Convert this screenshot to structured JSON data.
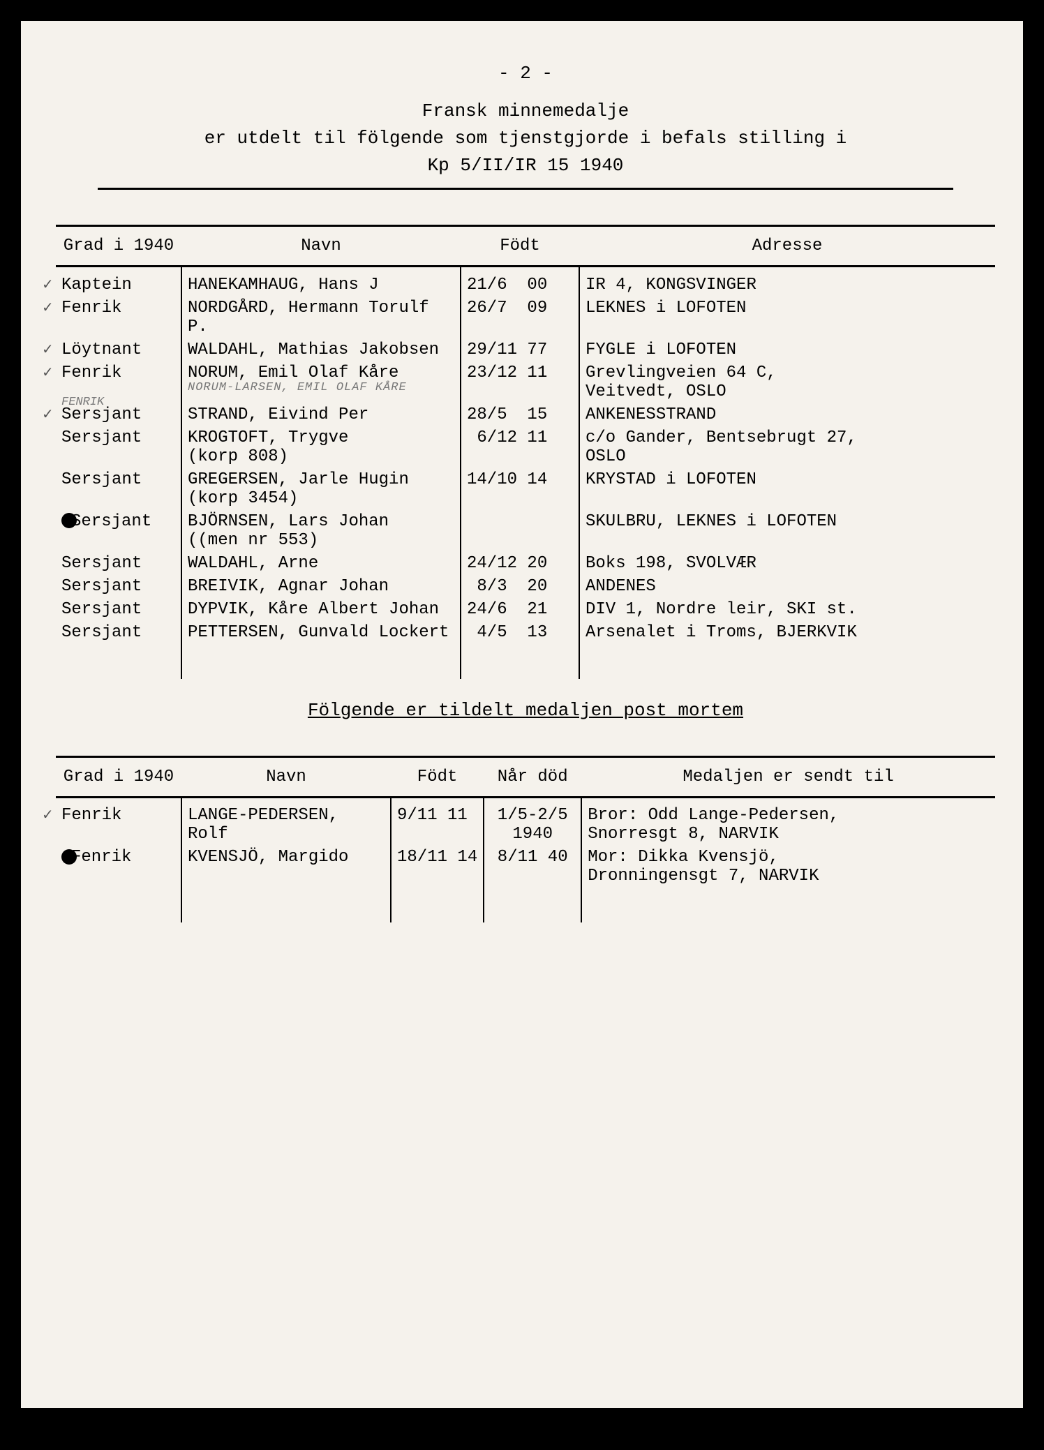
{
  "page_number": "- 2 -",
  "header": {
    "line1": "Fransk minnemedalje",
    "line2": "er utdelt til fölgende som tjenstgjorde i befals stilling i",
    "line3": "Kp 5/II/IR 15 1940"
  },
  "table1": {
    "columns": [
      "Grad i 1940",
      "Navn",
      "Födt",
      "Adresse"
    ],
    "rows": [
      {
        "check": "✓",
        "grad": "Kaptein",
        "navn": "HANEKAMHAUG, Hans J",
        "fodt": "21/6  00",
        "addr": "IR 4, KONGSVINGER"
      },
      {
        "check": "✓",
        "grad": "Fenrik",
        "navn": "NORDGÅRD, Hermann Torulf P.",
        "fodt": "26/7  09",
        "addr": "LEKNES i LOFOTEN"
      },
      {
        "check": "✓",
        "grad": "Löytnant",
        "navn": "WALDAHL, Mathias Jakobsen",
        "fodt": "29/11 77",
        "addr": "FYGLE i LOFOTEN"
      },
      {
        "check": "✓",
        "grad": "Fenrik",
        "navn": "NORUM, Emil Olaf Kåre",
        "annotation": "NORUM-LARSEN, EMIL OLAF KÅRE",
        "fodt": "23/12 11",
        "addr": "Grevlingveien 64 C,\nVeitvedt, OSLO"
      },
      {
        "check": "✓",
        "grad": "Sersjant",
        "grad_annotation": "FENRIK",
        "navn": "STRAND, Eivind Per",
        "fodt": "28/5  15",
        "addr": "ANKENESSTRAND"
      },
      {
        "check": "",
        "grad": "Sersjant",
        "navn": "KROGTOFT, Trygve\n(korp 808)",
        "fodt": " 6/12 11",
        "addr": "c/o Gander, Bentsebrugt 27,\nOSLO"
      },
      {
        "check": "",
        "grad": "Sersjant",
        "navn": "GREGERSEN, Jarle Hugin\n(korp 3454)",
        "fodt": "14/10 14",
        "addr": "KRYSTAD i LOFOTEN"
      },
      {
        "check": "",
        "grad": "Sersjant",
        "dot": true,
        "navn": "BJÖRNSEN, Lars Johan\n((men nr 553)",
        "fodt": "",
        "addr": "SKULBRU, LEKNES i LOFOTEN"
      },
      {
        "check": "",
        "grad": "Sersjant",
        "navn": "WALDAHL, Arne",
        "fodt": "24/12 20",
        "addr": "Boks 198, SVOLVÆR"
      },
      {
        "check": "",
        "grad": "Sersjant",
        "navn": "BREIVIK, Agnar Johan",
        "fodt": " 8/3  20",
        "addr": "ANDENES"
      },
      {
        "check": "",
        "grad": "Sersjant",
        "navn": "DYPVIK, Kåre Albert Johan",
        "fodt": "24/6  21",
        "addr": "DIV 1, Nordre leir, SKI st."
      },
      {
        "check": "",
        "grad": "Sersjant",
        "navn": "PETTERSEN, Gunvald Lockert",
        "fodt": " 4/5  13",
        "addr": "Arsenalet i Troms, BJERKVIK"
      }
    ]
  },
  "subtitle": "Fölgende er tildelt medaljen post mortem",
  "table2": {
    "columns": [
      "Grad i 1940",
      "Navn",
      "Födt",
      "Når död",
      "Medaljen er sendt til"
    ],
    "rows": [
      {
        "check": "✓",
        "grad": "Fenrik",
        "navn": "LANGE-PEDERSEN, Rolf",
        "fodt": "9/11 11",
        "dod": "1/5-2/5\n1940",
        "medal": "Bror: Odd Lange-Pedersen,\nSnorresgt 8, NARVIK"
      },
      {
        "check": "",
        "grad": "Fenrik",
        "dot": true,
        "navn": "KVENSJÖ, Margido",
        "fodt": "18/11 14",
        "dod": "8/11 40",
        "medal": "Mor: Dikka Kvensjö,\nDronningensgt 7, NARVIK"
      }
    ]
  },
  "colors": {
    "paper": "#f5f2ec",
    "ink": "#000000",
    "pencil": "#777777",
    "background": "#000000"
  }
}
